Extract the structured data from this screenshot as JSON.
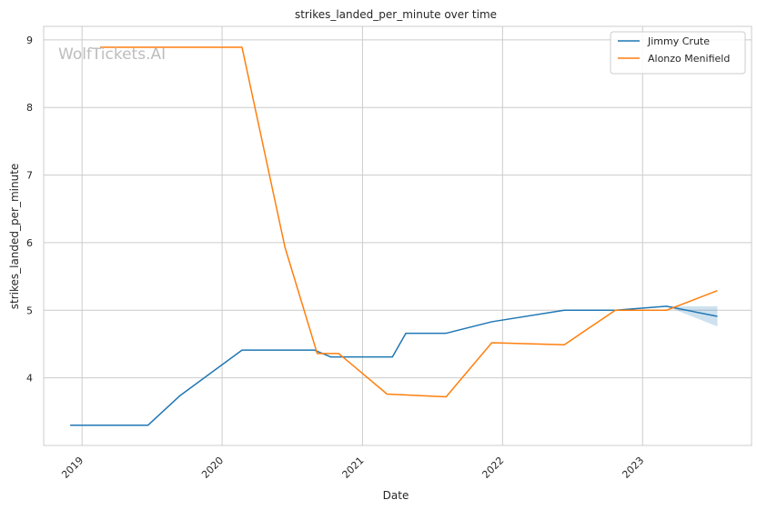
{
  "chart_data": {
    "type": "line",
    "title": "strikes_landed_per_minute over time",
    "xlabel": "Date",
    "ylabel": "strikes_landed_per_minute",
    "watermark": "WolfTickets.AI",
    "x_tick_labels": [
      "2019",
      "2020",
      "2021",
      "2022",
      "2023"
    ],
    "y_tick_labels": [
      "4",
      "5",
      "6",
      "7",
      "8",
      "9"
    ],
    "xlim": [
      "2018-09-23",
      "2023-10-12"
    ],
    "ylim": [
      3.0,
      9.2
    ],
    "grid": true,
    "legend_position": "top-right",
    "series": [
      {
        "name": "Jimmy Crute",
        "color": "#1f77b4",
        "points": [
          [
            "2018-12-01",
            3.3
          ],
          [
            "2019-06-22",
            3.3
          ],
          [
            "2019-09-14",
            3.74
          ],
          [
            "2020-02-22",
            4.41
          ],
          [
            "2020-08-29",
            4.41
          ],
          [
            "2020-10-10",
            4.31
          ],
          [
            "2021-03-20",
            4.31
          ],
          [
            "2021-04-24",
            4.66
          ],
          [
            "2021-08-07",
            4.66
          ],
          [
            "2021-12-04",
            4.83
          ],
          [
            "2022-06-11",
            5.0
          ],
          [
            "2022-10-22",
            5.0
          ],
          [
            "2023-03-04",
            5.06
          ],
          [
            "2023-07-15",
            4.91
          ]
        ],
        "band": [
          [
            "2023-03-04",
            5.06,
            5.06
          ],
          [
            "2023-07-15",
            4.76,
            5.06
          ]
        ]
      },
      {
        "name": "Alonzo Menifield",
        "color": "#ff7f0e",
        "points": [
          [
            "2019-02-17",
            8.89
          ],
          [
            "2020-02-22",
            8.89
          ],
          [
            "2020-06-13",
            5.93
          ],
          [
            "2020-09-05",
            4.36
          ],
          [
            "2020-10-31",
            4.36
          ],
          [
            "2021-03-06",
            3.76
          ],
          [
            "2021-08-07",
            3.72
          ],
          [
            "2021-12-04",
            4.52
          ],
          [
            "2022-06-11",
            4.49
          ],
          [
            "2022-10-22",
            5.0
          ],
          [
            "2023-03-04",
            5.0
          ],
          [
            "2023-07-15",
            5.29
          ]
        ]
      }
    ]
  }
}
